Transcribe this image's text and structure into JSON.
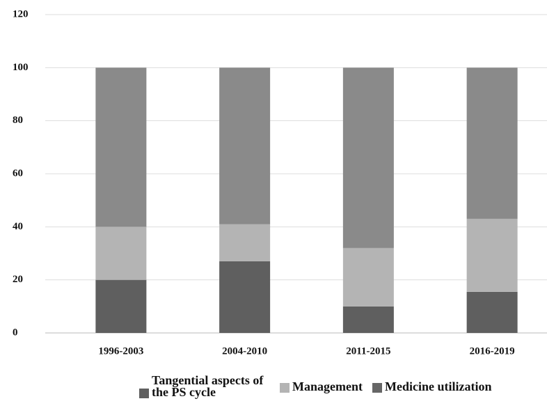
{
  "chart_data": {
    "type": "stacked_bar",
    "categories": [
      "1996-2003",
      "2004-2010",
      "2011-2015",
      "2016-2019"
    ],
    "series": [
      {
        "name": "Tangential aspects of the PS cycle",
        "color": "#5f5f5f",
        "values": [
          20,
          27,
          10,
          15.5
        ]
      },
      {
        "name": "Management",
        "color": "#b4b4b4",
        "values": [
          20,
          14,
          22,
          27.5
        ]
      },
      {
        "name": "Medicine utilization",
        "color": "#8a8a8a",
        "values": [
          60,
          59,
          68,
          57
        ]
      }
    ],
    "legend_colors": [
      "#5f5f5f",
      "#b4b4b4",
      "#666666"
    ],
    "ylim": [
      0,
      120
    ],
    "yticks": [
      0,
      20,
      40,
      60,
      80,
      100,
      120
    ],
    "grid": true,
    "legend": "bottom"
  }
}
